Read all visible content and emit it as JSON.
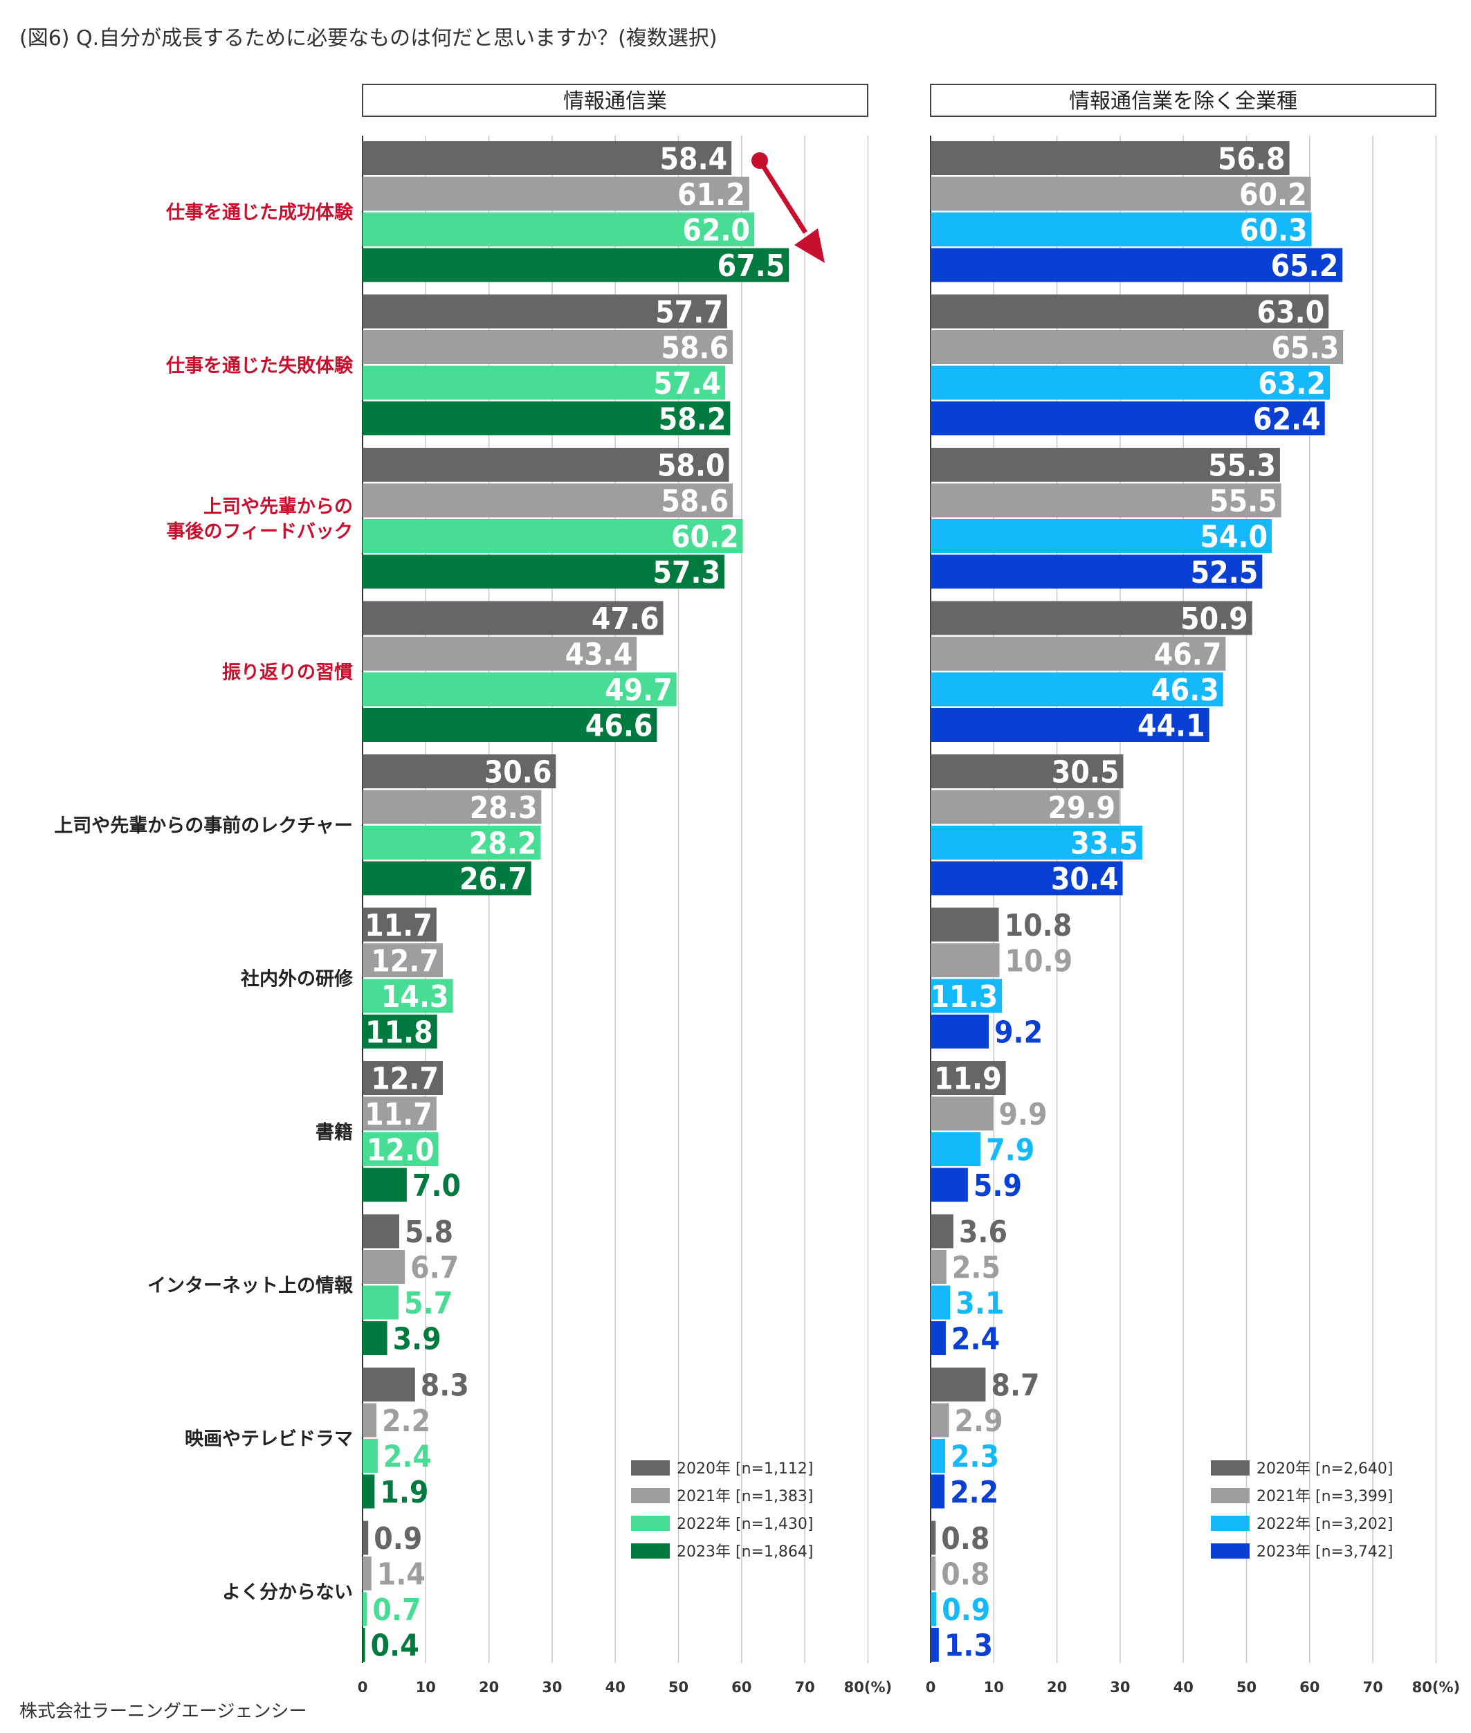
{
  "title": "(図6) Q.自分が成長するために必要なものは何だと思いますか？(複数選択)",
  "footer": "株式会社ラーニングエージェンシー",
  "chart_data": [
    {
      "type": "bar",
      "orientation": "horizontal",
      "title": "情報通信業",
      "xlim": [
        0,
        80
      ],
      "ticks": [
        "0",
        "10",
        "20",
        "30",
        "40",
        "50",
        "60",
        "70",
        "80(%)"
      ],
      "categories": [
        "仕事を通じた成功体験",
        "仕事を通じた失敗体験",
        "上司や先輩からの\n事後のフィードバック",
        "振り返りの習慣",
        "上司や先輩からの事前のレクチャー",
        "社内外の研修",
        "書籍",
        "インターネット上の情報",
        "映画やテレビドラマ",
        "よく分からない"
      ],
      "highlighted_categories": [
        0,
        1,
        2,
        3
      ],
      "series": [
        {
          "name": "2020年 [n=1,112]",
          "color": "#666666",
          "values": [
            58.4,
            57.7,
            58.0,
            47.6,
            30.6,
            11.7,
            12.7,
            5.8,
            8.3,
            0.9
          ]
        },
        {
          "name": "2021年 [n=1,383]",
          "color": "#9e9e9e",
          "values": [
            61.2,
            58.6,
            58.6,
            43.4,
            28.3,
            12.7,
            11.7,
            6.7,
            2.2,
            1.4
          ]
        },
        {
          "name": "2022年 [n=1,430]",
          "color": "#48dd94",
          "values": [
            62.0,
            57.4,
            60.2,
            49.7,
            28.2,
            14.3,
            12.0,
            5.7,
            2.4,
            0.7
          ]
        },
        {
          "name": "2023年 [n=1,864]",
          "color": "#007a3e",
          "values": [
            67.5,
            58.2,
            57.3,
            46.6,
            26.7,
            11.8,
            7.0,
            3.9,
            1.9,
            0.4
          ]
        }
      ],
      "annotation": "arrow from 2020 to 2023 on 仕事を通じた成功体験"
    },
    {
      "type": "bar",
      "orientation": "horizontal",
      "title": "情報通信業を除く全業種",
      "xlim": [
        0,
        80
      ],
      "ticks": [
        "0",
        "10",
        "20",
        "30",
        "40",
        "50",
        "60",
        "70",
        "80(%)"
      ],
      "series": [
        {
          "name": "2020年 [n=2,640]",
          "color": "#666666",
          "values": [
            56.8,
            63.0,
            55.3,
            50.9,
            30.5,
            10.8,
            11.9,
            3.6,
            8.7,
            0.8
          ]
        },
        {
          "name": "2021年 [n=3,399]",
          "color": "#9e9e9e",
          "values": [
            60.2,
            65.3,
            55.5,
            46.7,
            29.9,
            10.9,
            9.9,
            2.5,
            2.9,
            0.8
          ]
        },
        {
          "name": "2022年 [n=3,202]",
          "color": "#14b9fb",
          "values": [
            60.3,
            63.2,
            54.0,
            46.3,
            33.5,
            11.3,
            7.9,
            3.1,
            2.3,
            0.9
          ]
        },
        {
          "name": "2023年 [n=3,742]",
          "color": "#0a3fd4",
          "values": [
            65.2,
            62.4,
            52.5,
            44.1,
            30.4,
            9.2,
            5.9,
            2.4,
            2.2,
            1.3
          ]
        }
      ]
    }
  ]
}
